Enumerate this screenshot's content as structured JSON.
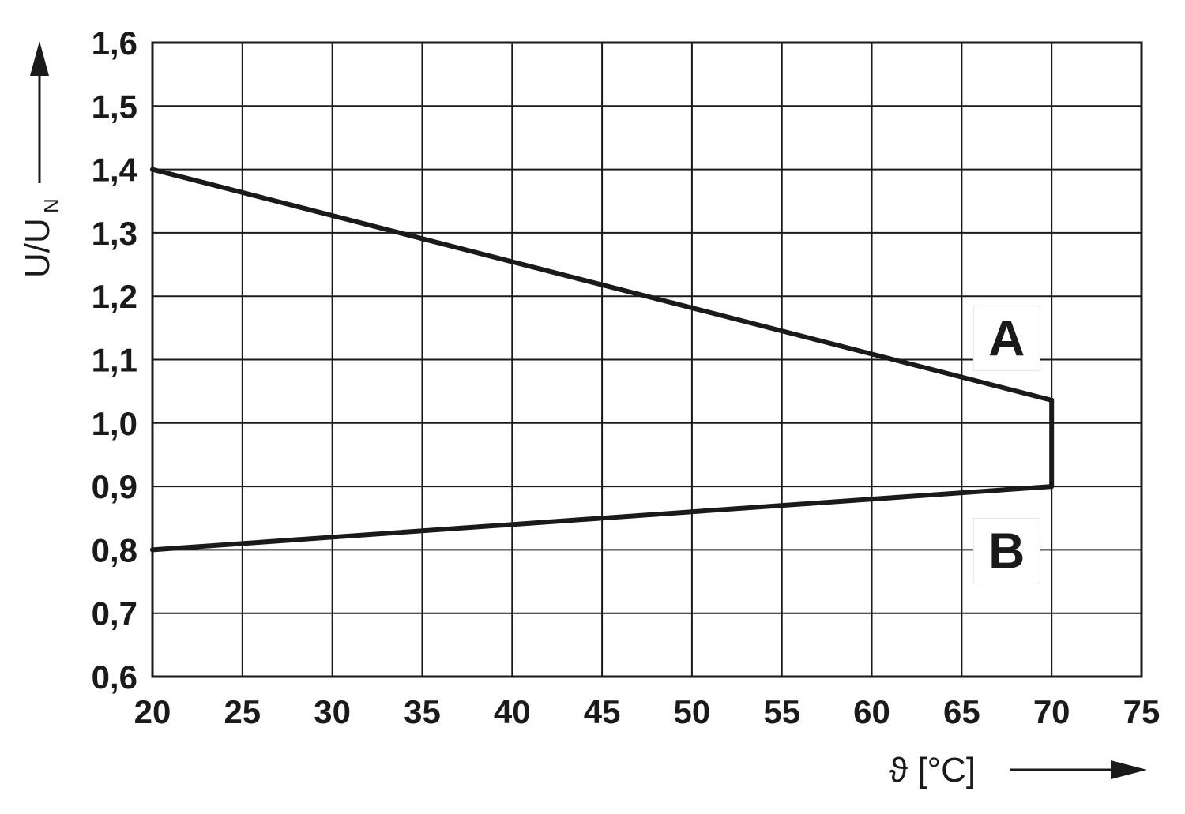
{
  "chart_data": {
    "type": "line",
    "xlabel": "ϑ [°C]",
    "ylabel": {
      "main": "U/U",
      "subscript": "N"
    },
    "xlim": [
      20,
      75
    ],
    "ylim": [
      0.6,
      1.6
    ],
    "x_ticks": [
      20,
      25,
      30,
      35,
      40,
      45,
      50,
      55,
      60,
      65,
      70,
      75
    ],
    "x_tick_labels": [
      "20",
      "25",
      "30",
      "35",
      "40",
      "45",
      "50",
      "55",
      "60",
      "65",
      "70",
      "75"
    ],
    "y_ticks": [
      0.6,
      0.7,
      0.8,
      0.9,
      1.0,
      1.1,
      1.2,
      1.3,
      1.4,
      1.5,
      1.6
    ],
    "y_tick_labels": [
      "0,6",
      "0,7",
      "0,8",
      "0,9",
      "1,0",
      "1,1",
      "1,2",
      "1,3",
      "1,4",
      "1,5",
      "1,6"
    ],
    "grid": true,
    "series": [
      {
        "points": [
          [
            20,
            1.4
          ],
          [
            70,
            1.036
          ],
          [
            70,
            0.9
          ],
          [
            20,
            0.8
          ]
        ]
      }
    ],
    "annotations": [
      {
        "text": "A",
        "x": 67.5,
        "y": 1.135
      },
      {
        "text": "B",
        "x": 67.5,
        "y": 0.8
      }
    ],
    "line_color": "#1a1a1a",
    "grid_color": "#1a1a1a"
  }
}
